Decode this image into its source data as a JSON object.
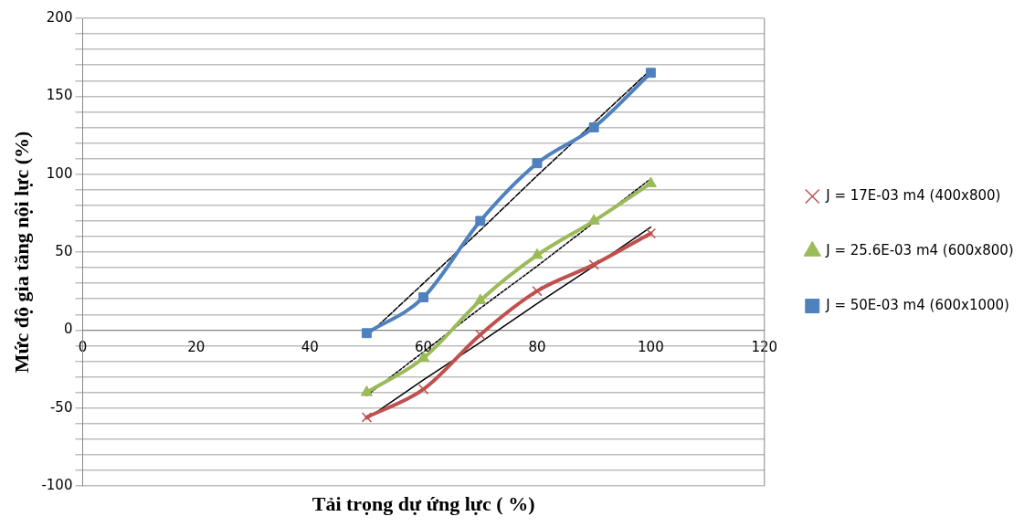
{
  "chart_data": {
    "type": "line",
    "xlabel": "Tải trọng dự ứng lực ( %)",
    "ylabel": "Mức độ gia tăng nội lực (%)",
    "xlim": [
      0,
      120
    ],
    "xticks": [
      0,
      20,
      40,
      60,
      80,
      100,
      120
    ],
    "ylim": [
      -100,
      200
    ],
    "yticks": [
      -100,
      {
        "value": -90,
        "label": null
      },
      {
        "value": -80,
        "label": null
      },
      {
        "value": -70,
        "label": null
      },
      {
        "value": -60,
        "label": null
      },
      -50,
      {
        "value": -40,
        "label": null
      },
      {
        "value": -30,
        "label": null
      },
      {
        "value": -20,
        "label": null
      },
      {
        "value": -10,
        "label": null
      },
      0,
      {
        "value": 10,
        "label": null
      },
      {
        "value": 20,
        "label": null
      },
      {
        "value": 30,
        "label": null
      },
      {
        "value": 40,
        "label": null
      },
      50,
      {
        "value": 60,
        "label": null
      },
      {
        "value": 70,
        "label": null
      },
      {
        "value": 80,
        "label": null
      },
      {
        "value": 90,
        "label": null
      },
      100,
      {
        "value": 110,
        "label": null
      },
      {
        "value": 120,
        "label": null
      },
      {
        "value": 130,
        "label": null
      },
      {
        "value": 140,
        "label": null
      },
      150,
      {
        "value": 160,
        "label": null
      },
      {
        "value": 170,
        "label": null
      },
      {
        "value": 180,
        "label": null
      },
      {
        "value": 190,
        "label": null
      },
      200
    ],
    "grid": "y",
    "legend": "right",
    "x": [
      50,
      60,
      70,
      80,
      90,
      100
    ],
    "series": [
      {
        "name": "J = 17E-03 m4 (400x800)",
        "color": "#c0504d",
        "marker": "cross",
        "values": [
          -56,
          -38,
          -3,
          25,
          42,
          62
        ]
      },
      {
        "name": "J = 25.6E-03 m4 (600x800)",
        "color": "#9bbb59",
        "marker": "triangle",
        "values": [
          -40,
          -18,
          19,
          48,
          70,
          94
        ]
      },
      {
        "name": "J = 50E-03 m4 (600x1000)",
        "color": "#4f81bd",
        "marker": "square",
        "values": [
          -2,
          21,
          70,
          107,
          130,
          165
        ]
      },
      {
        "type": "line",
        "color": "#000000",
        "marker": "none",
        "line_style": "solid",
        "values": [
          -57,
          -32,
          -8,
          17,
          41,
          66
        ]
      },
      {
        "type": "line",
        "color": "#000000",
        "marker": "none",
        "line_style": "dotted",
        "values": [
          -42,
          -14,
          14,
          41,
          69,
          97
        ]
      },
      {
        "type": "line",
        "color": "#000000",
        "marker": "none",
        "line_style": "dashed",
        "values": [
          -4,
          30,
          64,
          99,
          133,
          167
        ]
      }
    ]
  }
}
